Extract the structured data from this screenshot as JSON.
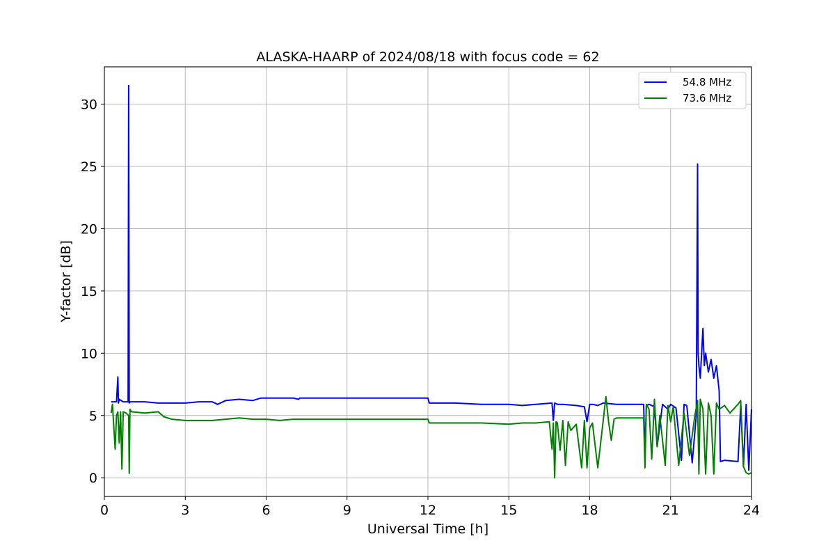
{
  "chart_data": {
    "type": "line",
    "title": "ALASKA-HAARP of 2024/08/18 with focus code = 62",
    "xlabel": "Universal Time [h]",
    "ylabel": "Y-factor [dB]",
    "xlim": [
      0,
      24
    ],
    "ylim": [
      -1.5,
      33
    ],
    "xticks": [
      0,
      3,
      6,
      9,
      12,
      15,
      18,
      21,
      24
    ],
    "yticks": [
      0,
      5,
      10,
      15,
      20,
      25,
      30
    ],
    "grid": true,
    "legend_position": "top-right",
    "series": [
      {
        "name": "54.8 MHz",
        "color": "#0000ff",
        "x": [
          0.25,
          0.45,
          0.5,
          0.52,
          0.55,
          0.7,
          0.88,
          0.9,
          0.92,
          0.95,
          1.0,
          1.5,
          2.0,
          2.5,
          3.0,
          3.5,
          4.0,
          4.2,
          4.5,
          5.0,
          5.5,
          5.8,
          6.0,
          6.5,
          7.0,
          7.2,
          7.25,
          12.0,
          12.05,
          13.0,
          14.0,
          15.0,
          15.5,
          16.0,
          16.6,
          16.65,
          16.7,
          16.8,
          17.0,
          17.5,
          17.8,
          17.9,
          18.0,
          18.1,
          18.3,
          18.5,
          19.0,
          19.5,
          20.0,
          20.05,
          20.1,
          20.2,
          20.4,
          20.5,
          20.7,
          20.9,
          21.0,
          21.2,
          21.4,
          21.5,
          21.6,
          21.8,
          21.95,
          22.0,
          22.02,
          22.05,
          22.1,
          22.2,
          22.25,
          22.3,
          22.4,
          22.5,
          22.6,
          22.7,
          22.8,
          22.85,
          23.0,
          23.5,
          23.6,
          23.7,
          23.8,
          23.9,
          24.0
        ],
        "y": [
          6.1,
          6.1,
          8.1,
          6.0,
          6.3,
          6.1,
          6.1,
          31.5,
          6.0,
          6.1,
          6.1,
          6.1,
          6.0,
          6.0,
          6.0,
          6.1,
          6.1,
          5.9,
          6.2,
          6.3,
          6.2,
          6.4,
          6.4,
          6.4,
          6.4,
          6.3,
          6.4,
          6.4,
          6.0,
          6.0,
          5.9,
          5.9,
          5.8,
          5.9,
          6.0,
          4.6,
          6.0,
          5.9,
          5.9,
          5.8,
          5.7,
          4.5,
          5.9,
          5.9,
          5.8,
          6.0,
          5.9,
          5.9,
          5.9,
          2.0,
          5.8,
          5.9,
          5.7,
          2.5,
          5.9,
          5.5,
          5.9,
          5.6,
          1.4,
          5.9,
          5.8,
          1.2,
          5.0,
          25.2,
          10.0,
          9.0,
          8.0,
          12.0,
          9.0,
          10.0,
          8.5,
          9.5,
          8.0,
          9.0,
          7.0,
          1.3,
          1.4,
          1.3,
          5.8,
          0.9,
          5.9,
          0.6,
          5.5
        ]
      },
      {
        "name": "73.6 MHz",
        "color": "#008000",
        "x": [
          0.25,
          0.3,
          0.4,
          0.45,
          0.5,
          0.55,
          0.6,
          0.65,
          0.7,
          0.8,
          0.9,
          0.92,
          0.95,
          1.0,
          1.5,
          2.0,
          2.2,
          2.5,
          3.0,
          3.5,
          4.0,
          4.5,
          5.0,
          5.5,
          6.0,
          6.5,
          7.0,
          7.2,
          7.25,
          12.0,
          12.05,
          13.0,
          14.0,
          15.0,
          15.5,
          16.0,
          16.5,
          16.6,
          16.65,
          16.7,
          16.75,
          16.8,
          16.9,
          17.0,
          17.1,
          17.2,
          17.3,
          17.5,
          17.7,
          17.8,
          17.9,
          18.0,
          18.1,
          18.3,
          18.5,
          18.6,
          18.7,
          18.8,
          18.9,
          19.0,
          19.5,
          20.0,
          20.05,
          20.1,
          20.2,
          20.3,
          20.4,
          20.5,
          20.6,
          20.8,
          20.9,
          21.0,
          21.1,
          21.3,
          21.5,
          21.7,
          21.9,
          22.0,
          22.05,
          22.1,
          22.2,
          22.3,
          22.4,
          22.5,
          22.6,
          22.7,
          22.8,
          23.0,
          23.2,
          23.5,
          23.6,
          23.7,
          23.8,
          23.9,
          24.0
        ],
        "y": [
          5.2,
          5.9,
          2.3,
          5.0,
          5.3,
          2.8,
          5.3,
          0.7,
          5.3,
          5.2,
          5.0,
          0.35,
          5.5,
          5.3,
          5.2,
          5.3,
          4.9,
          4.7,
          4.6,
          4.6,
          4.6,
          4.7,
          4.8,
          4.7,
          4.7,
          4.6,
          4.7,
          4.7,
          4.7,
          4.7,
          4.4,
          4.4,
          4.4,
          4.3,
          4.4,
          4.4,
          4.5,
          2.3,
          4.4,
          0.0,
          4.5,
          4.4,
          2.2,
          4.6,
          1.0,
          4.5,
          3.8,
          4.3,
          0.8,
          4.6,
          0.8,
          4.0,
          4.4,
          0.8,
          4.6,
          6.5,
          4.5,
          3.0,
          4.7,
          4.8,
          4.8,
          4.8,
          0.8,
          5.9,
          5.5,
          1.5,
          6.3,
          2.5,
          5.0,
          1.0,
          5.8,
          4.5,
          5.7,
          1.0,
          5.2,
          1.8,
          5.0,
          6.2,
          0.3,
          6.3,
          5.5,
          0.3,
          6.0,
          5.0,
          0.3,
          6.0,
          5.5,
          5.8,
          5.2,
          5.9,
          6.2,
          0.9,
          0.4,
          0.3,
          0.4
        ]
      }
    ]
  }
}
